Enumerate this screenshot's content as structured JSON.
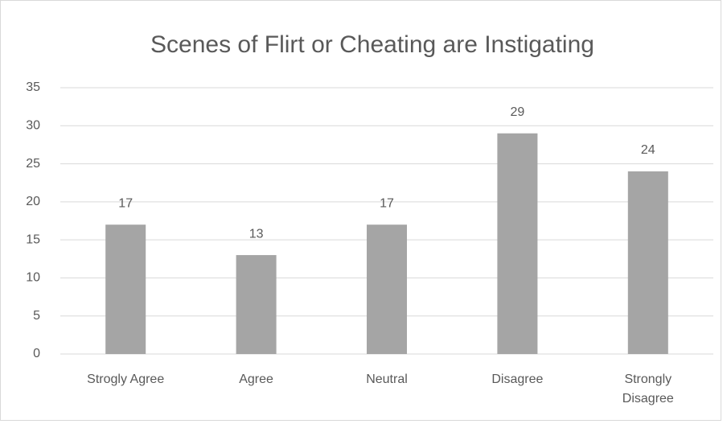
{
  "chart_data": {
    "type": "bar",
    "title": "Scenes of Flirt or Cheating are Instigating",
    "categories": [
      "Strogly Agree",
      "Agree",
      "Neutral",
      "Disagree",
      "Strongly Disagree"
    ],
    "values": [
      17,
      13,
      17,
      29,
      24
    ],
    "color": "#a5a5a5",
    "ylim": [
      0,
      35
    ],
    "yticks": [
      0,
      5,
      10,
      15,
      20,
      25,
      30,
      35
    ],
    "grid": true
  }
}
